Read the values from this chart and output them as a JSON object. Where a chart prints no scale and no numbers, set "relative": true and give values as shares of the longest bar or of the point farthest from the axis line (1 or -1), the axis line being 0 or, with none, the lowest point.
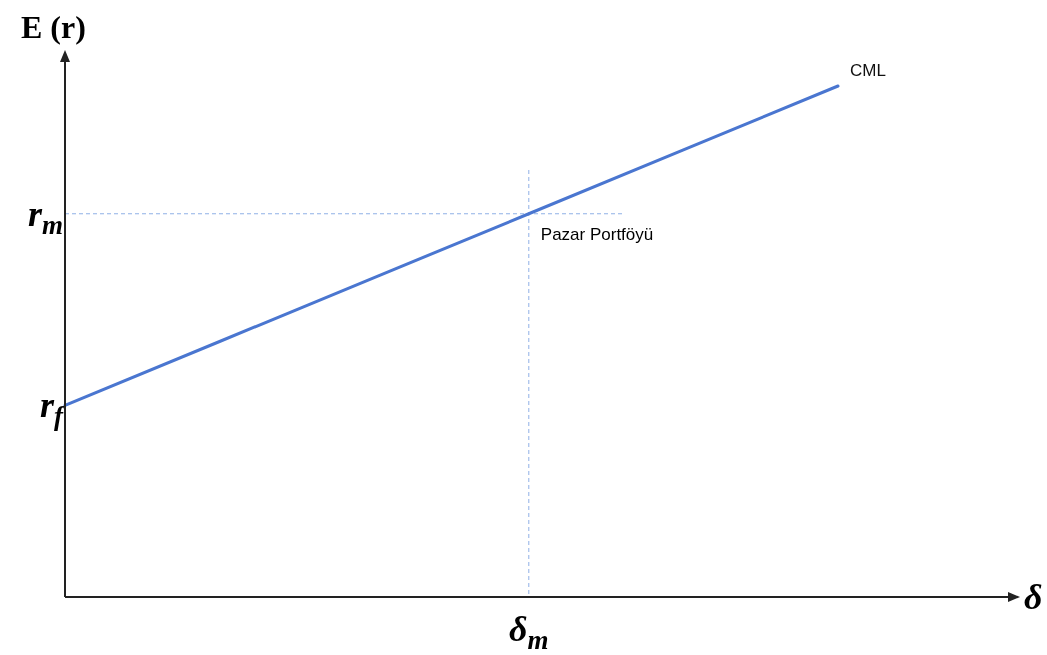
{
  "chart_data": {
    "type": "line",
    "relative": true,
    "xlabel": "δ",
    "ylabel": "E (r)",
    "categories": [
      null,
      null,
      null,
      null,
      null,
      null
    ],
    "series": [
      {
        "name": "CML",
        "color": "#4a76d0",
        "values": [
          0.375,
          0.5,
          0.625,
          0.75,
          0.875,
          1
        ]
      }
    ],
    "ref_lines": [
      {
        "axis": "y",
        "value": 0.75,
        "label": "r$_{m}$",
        "color": "#8fb0e6",
        "line_style": "dashed"
      }
    ],
    "annotations": [
      {
        "text": "Pazar Portföyü",
        "y": 0.75
      },
      "r$_{f}$",
      "δ$_{m}$"
    ]
  }
}
